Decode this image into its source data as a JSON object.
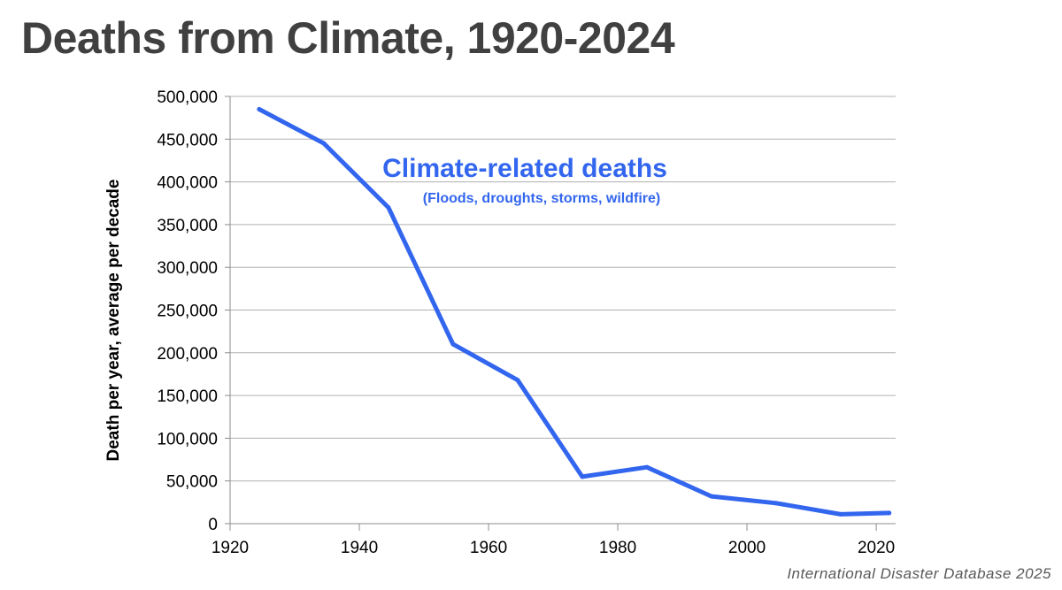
{
  "title": "Deaths from Climate, 1920-2024",
  "source": "International Disaster Database 2025",
  "colors": {
    "line": "#3366ee",
    "title": "#404040",
    "grid": "#b0b0b0"
  },
  "chart_data": {
    "type": "line",
    "title": "Deaths from Climate, 1920-2024",
    "xlabel": "",
    "ylabel": "Death per year, average per decade",
    "xlim": [
      1920,
      2023
    ],
    "ylim": [
      0,
      500000
    ],
    "grid": true,
    "x_ticks": [
      1920,
      1940,
      1960,
      1980,
      2000,
      2020
    ],
    "y_ticks": [
      0,
      50000,
      100000,
      150000,
      200000,
      250000,
      300000,
      350000,
      400000,
      450000,
      500000
    ],
    "y_tick_labels": [
      "0",
      "50,000",
      "100,000",
      "150,000",
      "200,000",
      "250,000",
      "300,000",
      "350,000",
      "400,000",
      "450,000",
      "500,000"
    ],
    "series": [
      {
        "name": "Climate-related deaths",
        "x": [
          1924.5,
          1934.5,
          1944.5,
          1954.5,
          1964.5,
          1974.5,
          1984.5,
          1994.5,
          2004.5,
          2014.5,
          2022
        ],
        "y": [
          485000,
          445000,
          370000,
          210000,
          168000,
          55000,
          66000,
          32000,
          24000,
          11000,
          12500
        ]
      }
    ],
    "annotations": [
      {
        "text": "Climate-related deaths"
      },
      {
        "text": "(Floods, droughts, storms, wildfire)"
      }
    ]
  }
}
